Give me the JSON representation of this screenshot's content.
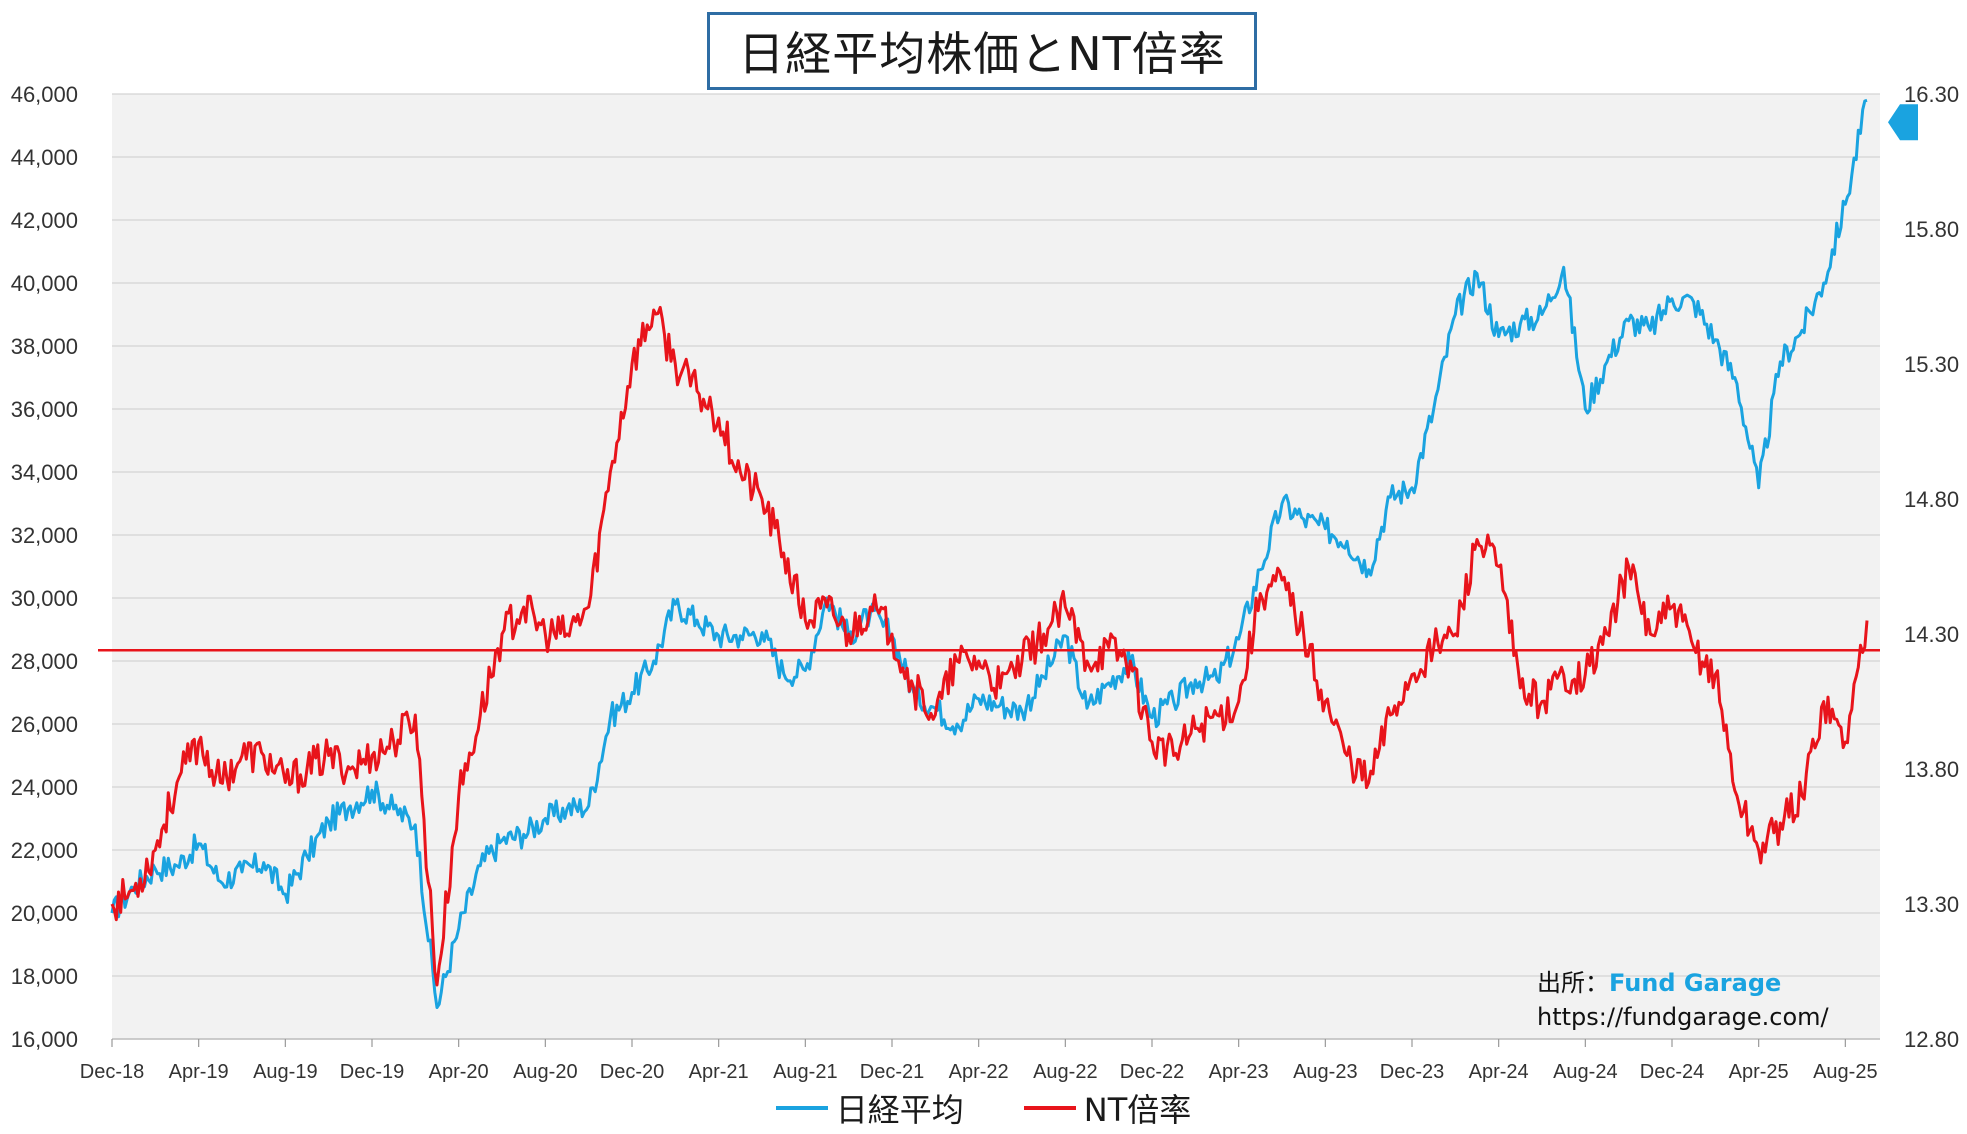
{
  "title": "日経平均株価とNT倍率",
  "source": {
    "label": "出所：",
    "brand": "Fund Garage",
    "url": "https://fundgarage.com/"
  },
  "colors": {
    "nikkei": "#1aa3e0",
    "nt": "#e8141b",
    "grid": "#d4d4d4",
    "plot_bg": "#f2f2f2"
  },
  "chart_data": {
    "type": "line",
    "x_labels": [
      "Dec-18",
      "Apr-19",
      "Aug-19",
      "Dec-19",
      "Apr-20",
      "Aug-20",
      "Dec-20",
      "Apr-21",
      "Aug-21",
      "Dec-21",
      "Apr-22",
      "Aug-22",
      "Dec-22",
      "Apr-23",
      "Aug-23",
      "Dec-23",
      "Apr-24",
      "Aug-24",
      "Dec-24",
      "Apr-25",
      "Aug-25"
    ],
    "x_range": [
      "2018-12",
      "2025-09"
    ],
    "y_left": {
      "min": 16000,
      "max": 46000,
      "ticks": [
        "16,000",
        "18,000",
        "20,000",
        "22,000",
        "24,000",
        "26,000",
        "28,000",
        "30,000",
        "32,000",
        "34,000",
        "36,000",
        "38,000",
        "40,000",
        "42,000",
        "44,000",
        "46,000"
      ]
    },
    "y_right": {
      "min": 12.8,
      "max": 16.3,
      "ticks": [
        "12.80",
        "13.30",
        "13.80",
        "14.30",
        "14.80",
        "15.30",
        "15.80",
        "16.30"
      ]
    },
    "reference_line": {
      "axis": "right",
      "value": 14.24
    },
    "series": [
      {
        "name": "日経平均",
        "axis": "left",
        "points": [
          [
            "2018-12",
            20000
          ],
          [
            "2019-01",
            20800
          ],
          [
            "2019-02",
            21400
          ],
          [
            "2019-03",
            21500
          ],
          [
            "2019-04",
            22200
          ],
          [
            "2019-05",
            21000
          ],
          [
            "2019-06",
            21300
          ],
          [
            "2019-07",
            21600
          ],
          [
            "2019-08",
            20600
          ],
          [
            "2019-09",
            21800
          ],
          [
            "2019-10",
            22900
          ],
          [
            "2019-11",
            23400
          ],
          [
            "2019-12",
            23900
          ],
          [
            "2020-01",
            23300
          ],
          [
            "2020-02",
            22800
          ],
          [
            "2020-03",
            17000
          ],
          [
            "2020-04",
            19500
          ],
          [
            "2020-05",
            21500
          ],
          [
            "2020-06",
            22300
          ],
          [
            "2020-07",
            22500
          ],
          [
            "2020-08",
            23000
          ],
          [
            "2020-09",
            23300
          ],
          [
            "2020-10",
            23400
          ],
          [
            "2020-11",
            26200
          ],
          [
            "2020-12",
            27000
          ],
          [
            "2021-01",
            28000
          ],
          [
            "2021-02",
            29800
          ],
          [
            "2021-03",
            29300
          ],
          [
            "2021-04",
            28800
          ],
          [
            "2021-05",
            28800
          ],
          [
            "2021-06",
            28900
          ],
          [
            "2021-07",
            27600
          ],
          [
            "2021-08",
            27700
          ],
          [
            "2021-09",
            30000
          ],
          [
            "2021-10",
            28800
          ],
          [
            "2021-11",
            29500
          ],
          [
            "2021-12",
            28800
          ],
          [
            "2022-01",
            27000
          ],
          [
            "2022-02",
            26500
          ],
          [
            "2022-03",
            26000
          ],
          [
            "2022-04",
            26800
          ],
          [
            "2022-05",
            26600
          ],
          [
            "2022-06",
            26400
          ],
          [
            "2022-07",
            27500
          ],
          [
            "2022-08",
            28800
          ],
          [
            "2022-09",
            26500
          ],
          [
            "2022-10",
            27300
          ],
          [
            "2022-11",
            28000
          ],
          [
            "2022-12",
            26200
          ],
          [
            "2023-01",
            26700
          ],
          [
            "2023-02",
            27400
          ],
          [
            "2023-03",
            27400
          ],
          [
            "2023-04",
            28700
          ],
          [
            "2023-05",
            30900
          ],
          [
            "2023-06",
            33000
          ],
          [
            "2023-07",
            32500
          ],
          [
            "2023-08",
            32200
          ],
          [
            "2023-09",
            31800
          ],
          [
            "2023-10",
            30900
          ],
          [
            "2023-11",
            33200
          ],
          [
            "2023-12",
            33500
          ],
          [
            "2024-01",
            36000
          ],
          [
            "2024-02",
            39000
          ],
          [
            "2024-03",
            40300
          ],
          [
            "2024-04",
            38300
          ],
          [
            "2024-05",
            38700
          ],
          [
            "2024-06",
            39000
          ],
          [
            "2024-07",
            40500
          ],
          [
            "2024-08",
            36000
          ],
          [
            "2024-09",
            37500
          ],
          [
            "2024-10",
            38800
          ],
          [
            "2024-11",
            38500
          ],
          [
            "2024-12",
            39500
          ],
          [
            "2025-01",
            39400
          ],
          [
            "2025-02",
            38200
          ],
          [
            "2025-03",
            36800
          ],
          [
            "2025-04",
            33500
          ],
          [
            "2025-05",
            37500
          ],
          [
            "2025-06",
            38500
          ],
          [
            "2025-07",
            40000
          ],
          [
            "2025-08",
            42500
          ],
          [
            "2025-09",
            45800
          ]
        ]
      },
      {
        "name": "NT倍率",
        "axis": "right",
        "points": [
          [
            "2018-12",
            13.3
          ],
          [
            "2019-01",
            13.35
          ],
          [
            "2019-02",
            13.5
          ],
          [
            "2019-03",
            13.75
          ],
          [
            "2019-04",
            13.9
          ],
          [
            "2019-05",
            13.75
          ],
          [
            "2019-06",
            13.85
          ],
          [
            "2019-07",
            13.85
          ],
          [
            "2019-08",
            13.75
          ],
          [
            "2019-09",
            13.8
          ],
          [
            "2019-10",
            13.85
          ],
          [
            "2019-11",
            13.8
          ],
          [
            "2019-12",
            13.85
          ],
          [
            "2020-01",
            13.9
          ],
          [
            "2020-02",
            14.0
          ],
          [
            "2020-03",
            13.0
          ],
          [
            "2020-04",
            13.7
          ],
          [
            "2020-05",
            14.0
          ],
          [
            "2020-06",
            14.3
          ],
          [
            "2020-07",
            14.4
          ],
          [
            "2020-08",
            14.3
          ],
          [
            "2020-09",
            14.3
          ],
          [
            "2020-10",
            14.4
          ],
          [
            "2020-11",
            14.9
          ],
          [
            "2020-12",
            15.3
          ],
          [
            "2021-01",
            15.5
          ],
          [
            "2021-02",
            15.3
          ],
          [
            "2021-03",
            15.2
          ],
          [
            "2021-04",
            15.1
          ],
          [
            "2021-05",
            14.9
          ],
          [
            "2021-06",
            14.8
          ],
          [
            "2021-07",
            14.6
          ],
          [
            "2021-08",
            14.35
          ],
          [
            "2021-09",
            14.4
          ],
          [
            "2021-10",
            14.3
          ],
          [
            "2021-11",
            14.4
          ],
          [
            "2021-12",
            14.3
          ],
          [
            "2022-01",
            14.1
          ],
          [
            "2022-02",
            14.0
          ],
          [
            "2022-03",
            14.2
          ],
          [
            "2022-04",
            14.2
          ],
          [
            "2022-05",
            14.1
          ],
          [
            "2022-06",
            14.2
          ],
          [
            "2022-07",
            14.3
          ],
          [
            "2022-08",
            14.4
          ],
          [
            "2022-09",
            14.2
          ],
          [
            "2022-10",
            14.25
          ],
          [
            "2022-11",
            14.2
          ],
          [
            "2022-12",
            13.9
          ],
          [
            "2023-01",
            13.85
          ],
          [
            "2023-02",
            13.95
          ],
          [
            "2023-03",
            14.0
          ],
          [
            "2023-04",
            14.05
          ],
          [
            "2023-05",
            14.45
          ],
          [
            "2023-06",
            14.5
          ],
          [
            "2023-07",
            14.3
          ],
          [
            "2023-08",
            14.05
          ],
          [
            "2023-09",
            13.85
          ],
          [
            "2023-10",
            13.75
          ],
          [
            "2023-11",
            14.0
          ],
          [
            "2023-12",
            14.15
          ],
          [
            "2024-01",
            14.25
          ],
          [
            "2024-02",
            14.3
          ],
          [
            "2024-03",
            14.65
          ],
          [
            "2024-04",
            14.55
          ],
          [
            "2024-05",
            14.1
          ],
          [
            "2024-06",
            14.05
          ],
          [
            "2024-07",
            14.15
          ],
          [
            "2024-08",
            14.15
          ],
          [
            "2024-09",
            14.3
          ],
          [
            "2024-10",
            14.55
          ],
          [
            "2024-11",
            14.3
          ],
          [
            "2024-12",
            14.4
          ],
          [
            "2025-01",
            14.25
          ],
          [
            "2025-02",
            14.15
          ],
          [
            "2025-03",
            13.7
          ],
          [
            "2025-04",
            13.5
          ],
          [
            "2025-05",
            13.6
          ],
          [
            "2025-06",
            13.7
          ],
          [
            "2025-07",
            14.05
          ],
          [
            "2025-08",
            13.9
          ],
          [
            "2025-09",
            14.35
          ]
        ]
      }
    ],
    "legend": {
      "position": "bottom",
      "entries": [
        "日経平均",
        "NT倍率"
      ]
    },
    "grid": true
  }
}
